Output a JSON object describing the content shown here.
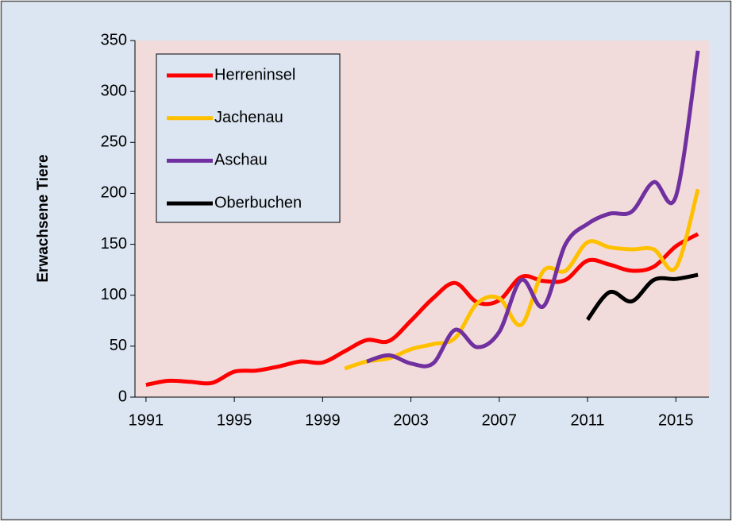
{
  "chart_data": {
    "type": "line",
    "y_label": "Erwachsene Tiere",
    "x": [
      1991,
      1992,
      1993,
      1994,
      1995,
      1996,
      1997,
      1998,
      1999,
      2000,
      2001,
      2002,
      2003,
      2004,
      2005,
      2006,
      2007,
      2008,
      2009,
      2010,
      2011,
      2012,
      2013,
      2014,
      2015,
      2016
    ],
    "xlim": [
      1990.5,
      2016.5
    ],
    "xticks": [
      1991,
      1995,
      1999,
      2003,
      2007,
      2011,
      2015
    ],
    "ylim": [
      0,
      350
    ],
    "yticks": [
      0,
      50,
      100,
      150,
      200,
      250,
      300,
      350
    ],
    "smooth": true,
    "legend": "top-left",
    "series": [
      {
        "name": "Herreninsel",
        "color": "#ff0000",
        "values": [
          12,
          16,
          15,
          14,
          25,
          26,
          30,
          35,
          34,
          45,
          56,
          55,
          75,
          97,
          112,
          93,
          95,
          118,
          114,
          115,
          134,
          130,
          124,
          128,
          148,
          160
        ]
      },
      {
        "name": "Jachenau",
        "color": "#ffc000",
        "values": [
          null,
          null,
          null,
          null,
          null,
          null,
          null,
          null,
          null,
          28,
          35,
          38,
          47,
          52,
          58,
          92,
          97,
          71,
          124,
          124,
          152,
          147,
          145,
          145,
          127,
          204
        ]
      },
      {
        "name": "Aschau",
        "color": "#7030a0",
        "values": [
          null,
          null,
          null,
          null,
          null,
          null,
          null,
          null,
          null,
          null,
          35,
          41,
          33,
          33,
          66,
          49,
          64,
          115,
          89,
          150,
          170,
          180,
          182,
          211,
          197,
          340
        ]
      },
      {
        "name": "Oberbuchen",
        "color": "#000000",
        "values": [
          null,
          null,
          null,
          null,
          null,
          null,
          null,
          null,
          null,
          null,
          null,
          null,
          null,
          null,
          null,
          null,
          null,
          null,
          null,
          null,
          76,
          103,
          94,
          115,
          116,
          120
        ]
      }
    ]
  }
}
